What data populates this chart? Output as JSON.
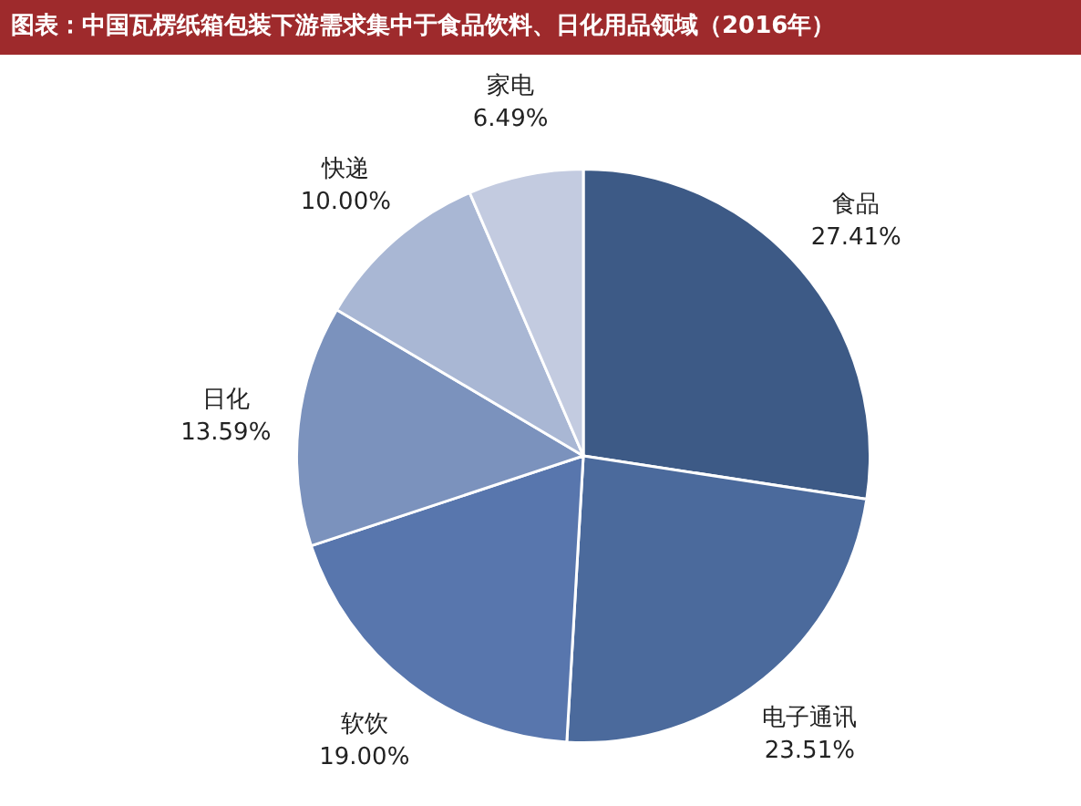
{
  "chart_data": {
    "type": "pie",
    "title": "图表：中国瓦楞纸箱包装下游需求集中于食品饮料、日化用品领域（2016年）",
    "categories": [
      "食品",
      "电子通讯",
      "软饮",
      "日化",
      "快递",
      "家电"
    ],
    "values": [
      27.41,
      23.51,
      19.0,
      13.59,
      10.0,
      6.49
    ],
    "value_labels": [
      "27.41%",
      "23.51%",
      "19.00%",
      "13.59%",
      "10.00%",
      "6.49%"
    ],
    "colors": [
      "#3d5a86",
      "#4b6a9c",
      "#5876ad",
      "#7b92bd",
      "#a9b7d4",
      "#c3cbe0"
    ],
    "legend": false
  }
}
